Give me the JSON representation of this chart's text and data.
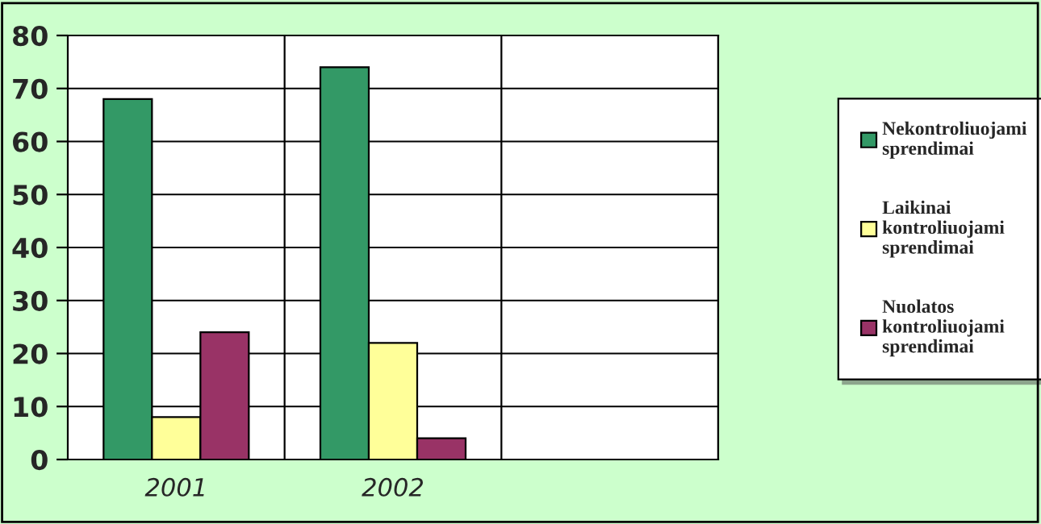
{
  "chart_data": {
    "type": "bar",
    "categories": [
      "2001",
      "2002",
      null
    ],
    "series": [
      {
        "name": "Nekontroliuojami sprendimai",
        "color": "#339966",
        "values": [
          68,
          74,
          null
        ]
      },
      {
        "name": "Laikinai kontroliuojami sprendimai",
        "color": "#ffff99",
        "values": [
          8,
          22,
          null
        ]
      },
      {
        "name": "Nuolatos kontroliuojami sprendimai",
        "color": "#993366",
        "values": [
          24,
          4,
          null
        ]
      }
    ],
    "ylim": [
      0,
      80
    ],
    "yticks": [
      0,
      10,
      20,
      30,
      40,
      50,
      60,
      70,
      80
    ],
    "grid": true,
    "legend": "right"
  }
}
